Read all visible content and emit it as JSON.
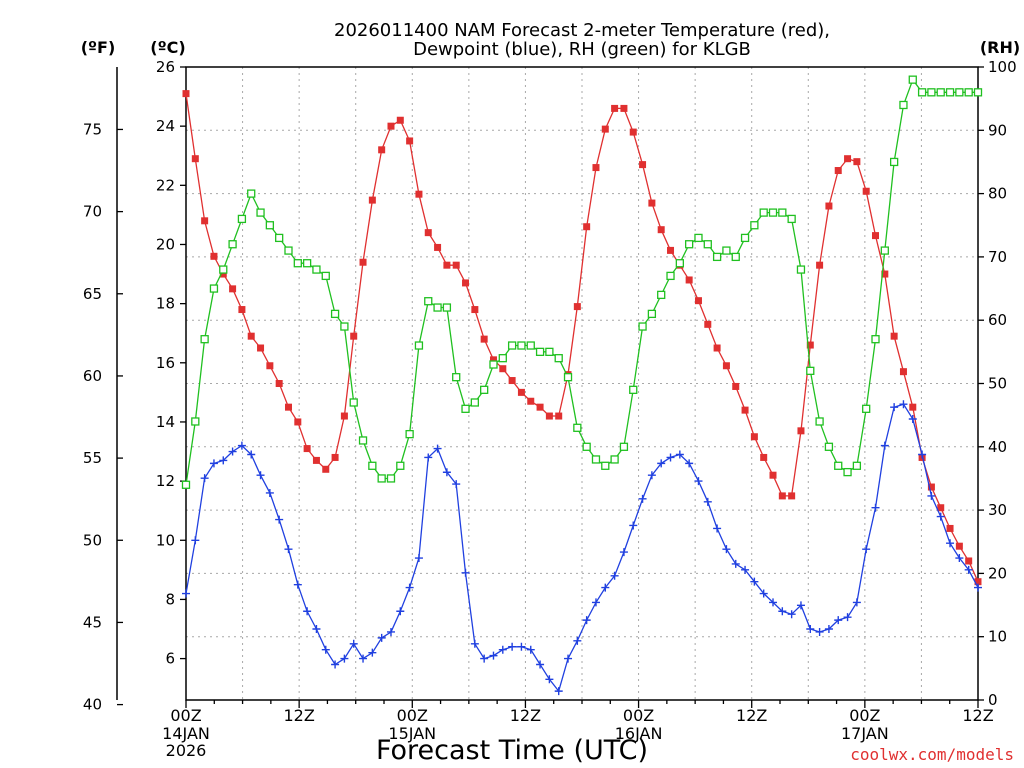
{
  "chart_data": {
    "type": "line",
    "title": "2026011400 NAM Forecast 2-meter Temperature (red),",
    "subtitle": "Dewpoint (blue), RH (green) for KLGB",
    "xlabel": "Forecast Time (UTC)",
    "watermark": "coolwx.com/models",
    "units": {
      "fahrenheit": "(ºF)",
      "celsius": "(ºC)",
      "rh": "(RH)"
    },
    "x_range_hours": [
      0,
      84
    ],
    "x_ticks": [
      {
        "h": 0,
        "label": "00Z",
        "sub1": "14JAN",
        "sub2": "2026"
      },
      {
        "h": 12,
        "label": "12Z"
      },
      {
        "h": 24,
        "label": "00Z",
        "sub1": "15JAN"
      },
      {
        "h": 36,
        "label": "12Z"
      },
      {
        "h": 48,
        "label": "00Z",
        "sub1": "16JAN"
      },
      {
        "h": 60,
        "label": "12Z"
      },
      {
        "h": 72,
        "label": "00Z",
        "sub1": "17JAN"
      },
      {
        "h": 84,
        "label": "12Z"
      }
    ],
    "celsius_axis": {
      "range": [
        4.6,
        26
      ],
      "ticks": [
        "6",
        "8",
        "10",
        "12",
        "14",
        "16",
        "18",
        "20",
        "22",
        "24",
        "26"
      ]
    },
    "fahrenheit_axis": {
      "ticks": [
        "40",
        "45",
        "50",
        "55",
        "60",
        "65",
        "70",
        "75"
      ]
    },
    "rh_axis": {
      "range": [
        0,
        100
      ],
      "ticks": [
        "0",
        "10",
        "20",
        "30",
        "40",
        "50",
        "60",
        "70",
        "80",
        "90",
        "100"
      ]
    },
    "colors": {
      "temperature": "#e03030",
      "dewpoint": "#2040e0",
      "rh": "#20c020"
    },
    "series": [
      {
        "name": "Temperature (red)",
        "unit": "°C",
        "values": [
          25.1,
          22.9,
          20.8,
          19.6,
          19.0,
          18.5,
          17.8,
          16.9,
          16.5,
          15.9,
          15.3,
          14.5,
          14.0,
          13.1,
          12.7,
          12.4,
          12.8,
          14.2,
          16.9,
          19.4,
          21.5,
          23.2,
          24.0,
          24.2,
          23.5,
          21.7,
          20.4,
          19.9,
          19.3,
          19.3,
          18.7,
          17.8,
          16.8,
          16.1,
          15.8,
          15.4,
          15.0,
          14.7,
          14.5,
          14.2,
          14.2,
          15.6,
          17.9,
          20.6,
          22.6,
          23.9,
          24.6,
          24.6,
          23.8,
          22.7,
          21.4,
          20.5,
          19.8,
          19.3,
          18.8,
          18.1,
          17.3,
          16.5,
          15.9,
          15.2,
          14.4,
          13.5,
          12.8,
          12.2,
          11.5,
          11.5,
          13.7,
          16.6,
          19.3,
          21.3,
          22.5,
          22.9,
          22.8,
          21.8,
          20.3,
          19.0,
          16.9,
          15.7,
          14.5,
          12.8,
          11.8,
          11.1,
          10.4,
          9.8,
          9.3,
          8.6
        ]
      },
      {
        "name": "Dewpoint (blue)",
        "unit": "°C",
        "values": [
          8.2,
          10.0,
          12.1,
          12.6,
          12.7,
          13.0,
          13.2,
          12.9,
          12.2,
          11.6,
          10.7,
          9.7,
          8.5,
          7.6,
          7.0,
          6.3,
          5.8,
          6.0,
          6.5,
          6.0,
          6.2,
          6.7,
          6.9,
          7.6,
          8.4,
          9.4,
          12.8,
          13.1,
          12.3,
          11.9,
          8.9,
          6.5,
          6.0,
          6.1,
          6.3,
          6.4,
          6.4,
          6.3,
          5.8,
          5.3,
          4.9,
          6.0,
          6.6,
          7.3,
          7.9,
          8.4,
          8.8,
          9.6,
          10.5,
          11.4,
          12.2,
          12.6,
          12.8,
          12.9,
          12.6,
          12.0,
          11.3,
          10.4,
          9.7,
          9.2,
          9.0,
          8.6,
          8.2,
          7.9,
          7.6,
          7.5,
          7.8,
          7.0,
          6.9,
          7.0,
          7.3,
          7.4,
          7.9,
          9.7,
          11.1,
          13.2,
          14.5,
          14.6,
          14.1,
          12.9,
          11.5,
          10.8,
          9.9,
          9.4,
          9.0,
          8.4
        ]
      },
      {
        "name": "RH (green)",
        "unit": "%",
        "values": [
          34,
          44,
          57,
          65,
          68,
          72,
          76,
          80,
          77,
          75,
          73,
          71,
          69,
          69,
          68,
          67,
          61,
          59,
          47,
          41,
          37,
          35,
          35,
          37,
          42,
          56,
          63,
          62,
          62,
          51,
          46,
          47,
          49,
          53,
          54,
          56,
          56,
          56,
          55,
          55,
          54,
          51,
          43,
          40,
          38,
          37,
          38,
          40,
          49,
          59,
          61,
          64,
          67,
          69,
          72,
          73,
          72,
          70,
          71,
          70,
          73,
          75,
          77,
          77,
          77,
          76,
          68,
          52,
          44,
          40,
          37,
          36,
          37,
          46,
          57,
          71,
          85,
          94,
          98,
          96,
          96,
          96,
          96,
          96,
          96,
          96
        ]
      }
    ]
  }
}
